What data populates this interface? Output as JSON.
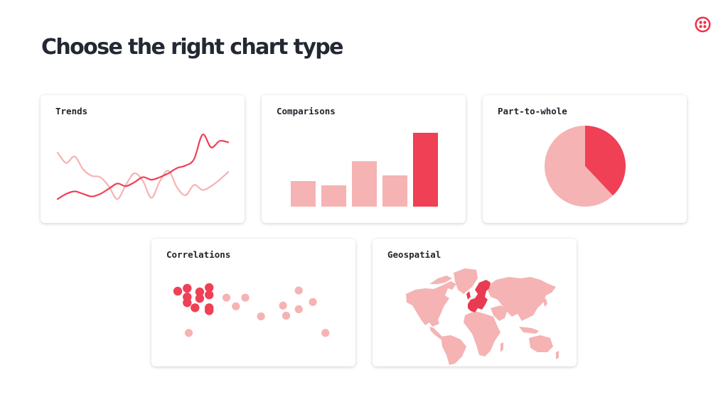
{
  "title": "Choose the right chart type",
  "logo": {
    "icon": "twilio-logo-icon",
    "color": "#f22f46"
  },
  "colors": {
    "accent": "#ef4056",
    "light": "#f5b3b3",
    "text": "#232832"
  },
  "cards": [
    {
      "key": "trends",
      "label": "Trends"
    },
    {
      "key": "comparisons",
      "label": "Comparisons"
    },
    {
      "key": "part",
      "label": "Part-to-whole"
    },
    {
      "key": "corr",
      "label": "Correlations"
    },
    {
      "key": "geo",
      "label": "Geospatial"
    }
  ],
  "chart_data": [
    {
      "type": "line",
      "x": [
        0,
        1,
        2,
        3,
        4,
        5,
        6,
        7,
        8,
        9,
        10,
        11,
        12,
        13,
        14,
        15,
        16,
        17,
        18,
        19,
        20
      ],
      "series": [
        {
          "color": "#ef4056",
          "values": [
            2,
            6,
            8,
            6,
            4,
            6,
            10,
            14,
            12,
            15,
            19,
            17,
            19,
            22,
            26,
            28,
            33,
            52,
            42,
            47,
            46
          ]
        },
        {
          "color": "#f5b3b3",
          "values": [
            38,
            30,
            35,
            25,
            20,
            19,
            12,
            2,
            13,
            22,
            16,
            3,
            16,
            24,
            11,
            5,
            13,
            9,
            12,
            17,
            23
          ]
        }
      ],
      "ylim": [
        0,
        55
      ]
    },
    {
      "type": "bar",
      "values": [
        36,
        30,
        64,
        44,
        104
      ],
      "highlight_index": 4,
      "ylim": [
        0,
        110
      ]
    },
    {
      "type": "pie",
      "values": [
        38,
        62
      ],
      "colors": [
        "#ef4056",
        "#f5b3b3"
      ]
    },
    {
      "type": "scatter",
      "groups": [
        {
          "color": "#ef4056",
          "points": [
            [
              0,
              63
            ],
            [
              6,
              67
            ],
            [
              14,
              62
            ],
            [
              20,
              68
            ],
            [
              6,
              55
            ],
            [
              14,
              53
            ],
            [
              20,
              58
            ],
            [
              6,
              47
            ],
            [
              11,
              40
            ],
            [
              20,
              40
            ],
            [
              20,
              36
            ]
          ]
        },
        {
          "color": "#f5b3b3",
          "points": [
            [
              31,
              54
            ],
            [
              43,
              54
            ],
            [
              37,
              42
            ],
            [
              53,
              28
            ],
            [
              67,
              43
            ],
            [
              77,
              64
            ],
            [
              86,
              48
            ],
            [
              77,
              38
            ],
            [
              69,
              29
            ],
            [
              7,
              5
            ],
            [
              94,
              5
            ]
          ]
        }
      ],
      "xlim": [
        0,
        100
      ],
      "ylim": [
        0,
        70
      ]
    }
  ],
  "map": {
    "type": "choropleth",
    "highlight_region": "Europe",
    "highlight_color": "#e83a50",
    "base_color": "#f5b3b3"
  }
}
